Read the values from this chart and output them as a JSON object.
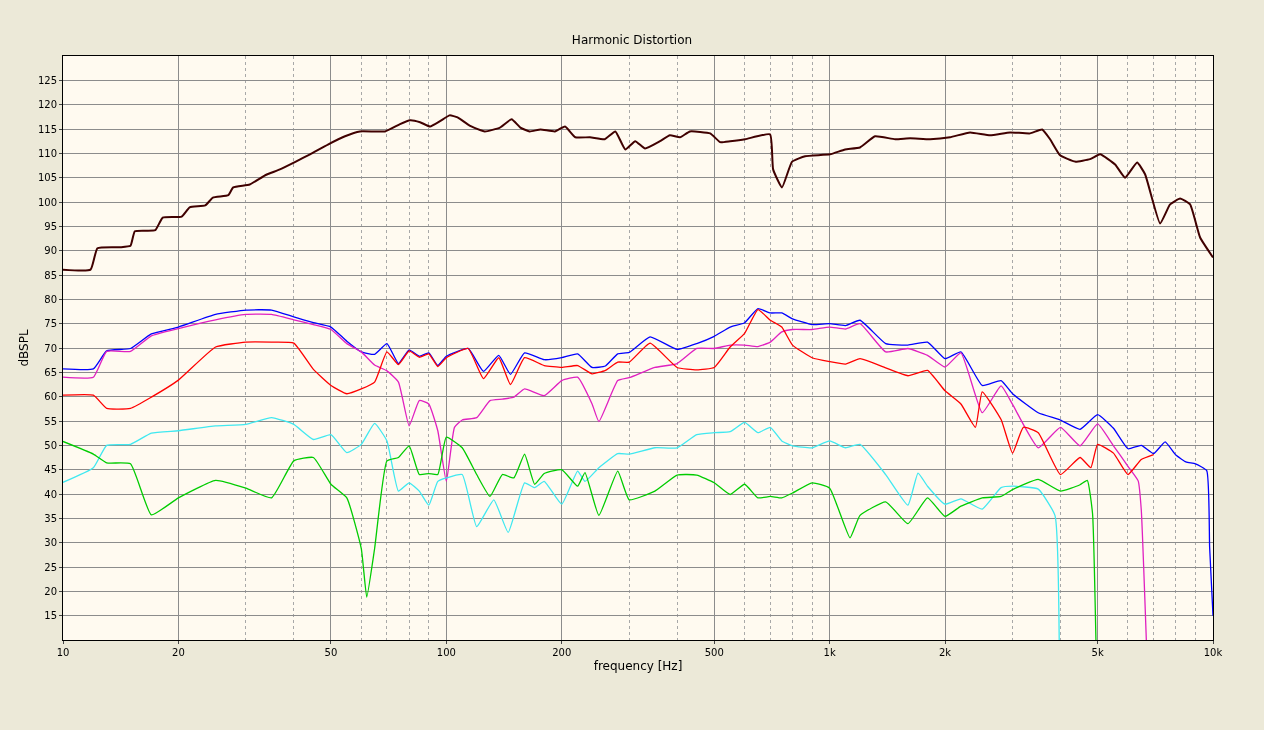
{
  "chart_data": {
    "type": "line",
    "title": "Harmonic Distortion",
    "xlabel": "frequency [Hz]",
    "ylabel": "dBSPL",
    "log": "x",
    "grid": true,
    "xlim": [
      10,
      10000
    ],
    "ylim": [
      10,
      130
    ],
    "xticks": [
      10,
      20,
      50,
      100,
      200,
      500,
      {
        "value": 1000,
        "label": "1k"
      },
      {
        "value": 2000,
        "label": "2k"
      },
      {
        "value": 5000,
        "label": "5k"
      },
      {
        "value": 10000,
        "label": "10k"
      }
    ],
    "yticks": [
      15,
      20,
      25,
      30,
      35,
      40,
      45,
      50,
      55,
      60,
      65,
      70,
      75,
      80,
      85,
      90,
      95,
      100,
      105,
      110,
      115,
      120,
      125
    ],
    "series": [
      {
        "color": "#400000",
        "x": [
          10,
          11.8,
          12.3,
          14.1,
          15,
          15.4,
          17.4,
          18.2,
          20.4,
          21.4,
          23.5,
          24.6,
          27,
          27.8,
          30.7,
          33.7,
          36.8,
          40.5,
          44.1,
          49.1,
          54.4,
          59.5,
          69.2,
          75.7,
          80.4,
          85.4,
          90.7,
          96.3,
          102,
          107,
          115,
          126,
          138,
          148,
          156,
          165,
          176,
          192,
          204,
          217,
          237,
          259,
          276,
          293,
          311,
          330,
          361,
          383,
          407,
          432,
          488,
          518,
          550,
          602,
          699,
          712,
          751,
          798,
          863,
          1002,
          1097,
          1200,
          1313,
          1481,
          1621,
          1828,
          2061,
          2324,
          2621,
          2956,
          3334,
          3583,
          3758,
          3991,
          4368,
          4779,
          5076,
          5555,
          5897,
          6339,
          6650,
          7278,
          7728,
          8207,
          8716,
          9256,
          10000
        ],
        "values": [
          86.1,
          86.1,
          90.5,
          90.7,
          91,
          94,
          94.2,
          96.8,
          97,
          98.9,
          99.3,
          100.9,
          101.4,
          103,
          103.6,
          105.5,
          106.7,
          108.3,
          109.8,
          111.8,
          113.5,
          114.5,
          114.5,
          116,
          116.8,
          116.4,
          115.5,
          116.6,
          117.8,
          117.4,
          115.7,
          114.5,
          115.3,
          117,
          115.3,
          114.5,
          114.9,
          114.5,
          115.5,
          113.3,
          113.3,
          112.9,
          114.5,
          110.8,
          112.5,
          111,
          112.5,
          113.7,
          113.3,
          114.5,
          114.1,
          112.3,
          112.5,
          112.9,
          113.9,
          106.7,
          103,
          108.3,
          109.4,
          109.8,
          110.8,
          111.2,
          113.5,
          112.9,
          113.1,
          112.9,
          113.3,
          114.3,
          113.7,
          114.3,
          114.1,
          114.9,
          112.9,
          109.6,
          108.3,
          108.8,
          109.8,
          107.7,
          105,
          108.1,
          105.7,
          95.6,
          99.5,
          100.7,
          99.5,
          92.7,
          88.6
        ]
      },
      {
        "color": "#0000ff",
        "x": [
          10,
          12,
          13,
          15,
          17,
          20,
          25,
          30,
          35,
          40,
          45,
          50,
          55,
          60,
          65,
          70,
          75,
          80,
          85,
          90,
          95,
          100,
          114,
          125,
          137,
          147,
          160,
          180,
          200,
          220,
          240,
          260,
          280,
          300,
          340,
          400,
          450,
          500,
          550,
          600,
          650,
          700,
          750,
          800,
          900,
          1000,
          1100,
          1200,
          1400,
          1600,
          1800,
          2000,
          2200,
          2500,
          2800,
          3000,
          3500,
          4000,
          4500,
          5000,
          5500,
          6000,
          6500,
          7000,
          7500,
          8000,
          8500,
          9000,
          9630,
          9800,
          10000
        ],
        "values": [
          65.7,
          65.7,
          69.4,
          69.9,
          72.9,
          74.3,
          76.9,
          77.8,
          77.8,
          76.4,
          75.2,
          74.3,
          71.4,
          69.2,
          68.7,
          70.9,
          66.8,
          69.6,
          68.3,
          69,
          66.4,
          68.3,
          69.9,
          65.2,
          68.5,
          64.6,
          69,
          67.6,
          68,
          68.8,
          66,
          66.3,
          68.8,
          69.1,
          72.3,
          69.7,
          70.9,
          72.4,
          74.3,
          75.2,
          78.1,
          77.2,
          77.2,
          76,
          74.8,
          75,
          74.6,
          75.7,
          70.9,
          70.6,
          71.2,
          67.8,
          69.2,
          62.3,
          63.3,
          60.6,
          56.7,
          55.2,
          53.3,
          56.3,
          53.5,
          49.3,
          50,
          48.3,
          50.7,
          48,
          46.6,
          46.2,
          44.8,
          29,
          15
        ]
      },
      {
        "color": "#e020c0",
        "x": [
          10,
          12,
          13,
          15,
          17,
          20,
          25,
          30,
          35,
          40,
          45,
          50,
          55,
          60,
          65,
          70,
          75,
          80,
          85,
          90,
          95,
          100,
          105,
          110,
          120,
          130,
          140,
          150,
          160,
          180,
          200,
          220,
          240,
          250,
          280,
          300,
          350,
          400,
          450,
          500,
          550,
          600,
          650,
          700,
          750,
          800,
          900,
          1000,
          1100,
          1200,
          1400,
          1600,
          1800,
          2000,
          2200,
          2500,
          2800,
          3000,
          3500,
          4000,
          4500,
          5000,
          5500,
          6000,
          6380,
          6500,
          6700
        ],
        "values": [
          64,
          64,
          69.3,
          69.3,
          72.5,
          74,
          75.8,
          76.9,
          76.9,
          75.8,
          74.8,
          73.8,
          70.9,
          69.2,
          66.5,
          65.3,
          63,
          54,
          59.2,
          58.5,
          53,
          42.6,
          53.7,
          55.2,
          55.7,
          59.2,
          59.5,
          59.9,
          61.6,
          60.2,
          63.3,
          64,
          58.5,
          54.9,
          63.3,
          63.9,
          66,
          66.8,
          69.9,
          69.9,
          70.6,
          70.6,
          70.3,
          71.2,
          73.3,
          73.8,
          73.8,
          74.3,
          73.9,
          75,
          69.2,
          69.9,
          68.5,
          66.1,
          69,
          56.7,
          62.2,
          58.4,
          49.5,
          53.7,
          49.9,
          54.4,
          49.9,
          45.7,
          42.7,
          36.7,
          10
        ]
      },
      {
        "color": "#ff0000",
        "x": [
          10,
          12,
          13,
          15,
          17,
          20,
          25,
          30,
          35,
          40,
          45,
          50,
          55,
          60,
          65,
          70,
          75,
          80,
          85,
          90,
          95,
          100,
          114,
          125,
          137,
          147,
          160,
          180,
          200,
          220,
          240,
          260,
          280,
          300,
          340,
          400,
          450,
          500,
          550,
          600,
          650,
          700,
          750,
          800,
          900,
          1000,
          1100,
          1200,
          1400,
          1600,
          1800,
          2000,
          2200,
          2400,
          2500,
          2800,
          3000,
          3200,
          3500,
          4000,
          4500,
          4800,
          5000,
          5500,
          6000,
          6500,
          7000
        ],
        "values": [
          60.3,
          60.3,
          57.6,
          57.6,
          59.9,
          63.4,
          70.2,
          71.2,
          71.2,
          71,
          65.6,
          62.3,
          60.6,
          61.6,
          63,
          69.2,
          66.6,
          69.4,
          68.1,
          68.8,
          66.2,
          68,
          69.9,
          63.7,
          68,
          62.5,
          68,
          66.4,
          66,
          66.4,
          64.7,
          65.4,
          67.1,
          67.1,
          71,
          66,
          65.5,
          66,
          70.2,
          73,
          77.9,
          75.7,
          74.3,
          70.6,
          68,
          67.2,
          66.7,
          67.8,
          65.9,
          64.3,
          65.4,
          61.2,
          58.5,
          53.7,
          61,
          55.3,
          48.4,
          53.7,
          52.6,
          44,
          47.5,
          45.4,
          50.2,
          48.4,
          44,
          47.1,
          48.1
        ]
      },
      {
        "color": "#40e8f0",
        "x": [
          10,
          12,
          13,
          15,
          17,
          20,
          25,
          30,
          35,
          40,
          45,
          50,
          55,
          60,
          65,
          70,
          75,
          80,
          85,
          90,
          95,
          100,
          110,
          120,
          133,
          145,
          160,
          170,
          180,
          200,
          220,
          230,
          250,
          280,
          300,
          350,
          400,
          450,
          500,
          550,
          600,
          650,
          700,
          750,
          800,
          900,
          1000,
          1100,
          1200,
          1400,
          1600,
          1700,
          1800,
          2000,
          2200,
          2500,
          2800,
          3000,
          3500,
          3870,
          3970
        ],
        "values": [
          42.4,
          45.4,
          50,
          50.2,
          52.5,
          53,
          54,
          54.3,
          55.7,
          54.3,
          51.2,
          52.2,
          48.5,
          50.2,
          54.5,
          50.9,
          40.6,
          42.3,
          40.6,
          37.7,
          42.6,
          43.3,
          44,
          33.3,
          38.8,
          32.1,
          42.3,
          41.3,
          42.6,
          37.9,
          44.7,
          42.6,
          45.4,
          48.3,
          48.2,
          49.5,
          49.5,
          52.2,
          52.6,
          52.8,
          54.7,
          52.6,
          53.7,
          50.9,
          49.9,
          49.5,
          50.9,
          49.5,
          50.2,
          44,
          37.7,
          44.3,
          41.6,
          37.9,
          39,
          36.9,
          41.3,
          41.6,
          41,
          35.6,
          10
        ]
      },
      {
        "color": "#00cc00",
        "x": [
          10,
          12,
          13,
          15,
          17,
          20,
          25,
          30,
          35,
          40,
          45,
          50,
          55,
          60,
          62,
          65,
          70,
          75,
          80,
          85,
          90,
          95,
          100,
          110,
          120,
          130,
          140,
          150,
          160,
          170,
          180,
          200,
          220,
          230,
          250,
          280,
          300,
          350,
          400,
          450,
          500,
          550,
          600,
          650,
          700,
          750,
          800,
          900,
          1000,
          1130,
          1200,
          1400,
          1600,
          1800,
          2000,
          2200,
          2500,
          2800,
          3000,
          3500,
          4000,
          4500,
          4700,
          4850,
          4950
        ],
        "values": [
          50.8,
          48.2,
          46.4,
          46.2,
          35.7,
          39.2,
          42.8,
          41.2,
          39.2,
          46.8,
          47.5,
          42,
          39.2,
          28.8,
          18.8,
          28.8,
          46.8,
          47.5,
          49.9,
          44,
          44.2,
          44,
          51.7,
          49.5,
          44,
          39.5,
          44,
          43.3,
          48.2,
          42,
          44.2,
          45,
          41.6,
          44.4,
          35.6,
          44.7,
          38.8,
          40.6,
          43.9,
          43.9,
          42.3,
          39.9,
          42,
          39.2,
          39.5,
          39.2,
          40.2,
          42.3,
          41.2,
          31,
          35.6,
          38.4,
          33.9,
          39.2,
          35.4,
          37.5,
          39.2,
          39.5,
          40.9,
          43,
          40.6,
          41.9,
          42.8,
          36,
          10
        ]
      }
    ]
  }
}
